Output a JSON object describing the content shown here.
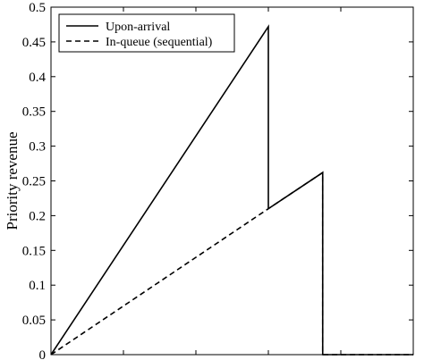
{
  "chart_data": {
    "type": "line",
    "ylabel": "Priority revenue",
    "xlabel": "",
    "ylim": [
      0,
      0.5
    ],
    "xlim": [
      0,
      1
    ],
    "yticks": [
      0,
      0.05,
      0.1,
      0.15,
      0.2,
      0.25,
      0.3,
      0.35,
      0.4,
      0.45,
      0.5
    ],
    "ytick_labels": [
      "0",
      "0.05",
      "0.1",
      "0.15",
      "0.2",
      "0.25",
      "0.3",
      "0.35",
      "0.4",
      "0.45",
      "0.5"
    ],
    "xticks": [
      0,
      0.2,
      0.4,
      0.6,
      0.8,
      1.0
    ],
    "legend_position": "top-left",
    "series": [
      {
        "name": "Upon-arrival",
        "style": "solid",
        "color": "#000000",
        "points": [
          [
            0,
            0
          ],
          [
            0.6,
            0.472
          ],
          [
            0.6,
            0.21
          ],
          [
            0.75,
            0.262
          ],
          [
            0.75,
            0
          ],
          [
            1.0,
            0
          ]
        ]
      },
      {
        "name": "In-queue (sequential)",
        "style": "dashed",
        "color": "#000000",
        "points": [
          [
            0,
            0
          ],
          [
            0.6,
            0.21
          ],
          [
            0.75,
            0.262
          ],
          [
            0.75,
            0
          ],
          [
            1.0,
            0
          ]
        ]
      }
    ]
  }
}
